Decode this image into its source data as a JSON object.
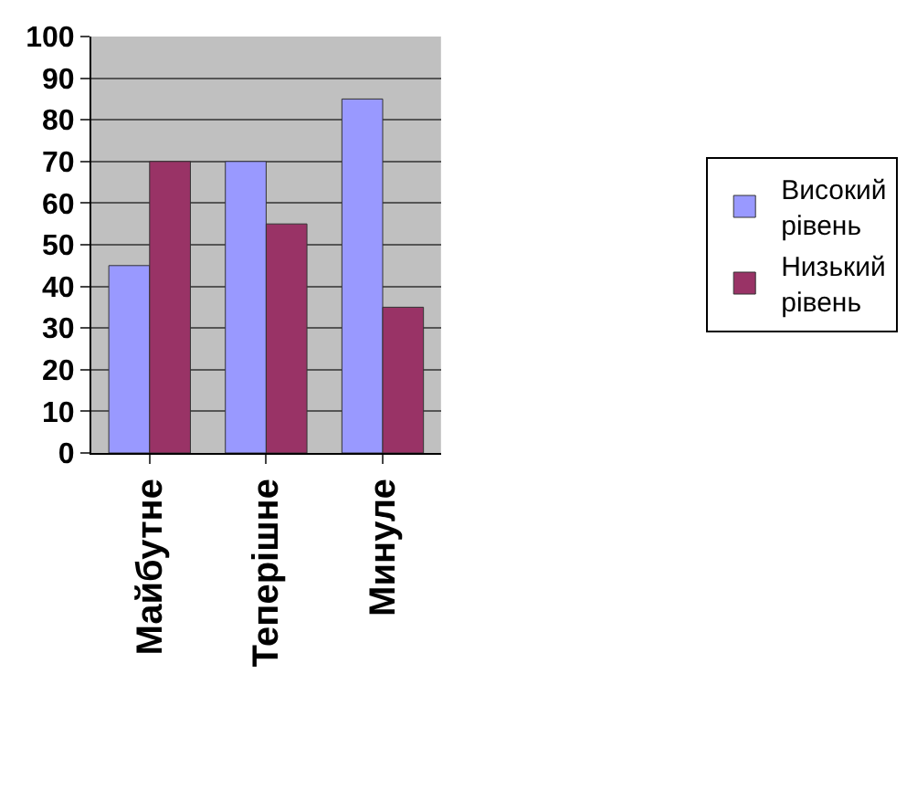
{
  "chart_data": {
    "type": "bar",
    "categories": [
      "Майбутне",
      "Теперішне",
      "Минуле"
    ],
    "series": [
      {
        "name": "Високий рівень",
        "color": "#9999ff",
        "values": [
          45,
          70,
          85
        ]
      },
      {
        "name": "Низький рівень",
        "color": "#993366",
        "values": [
          70,
          55,
          35
        ]
      }
    ],
    "ylim": [
      0,
      100
    ],
    "yticks": [
      0,
      10,
      20,
      30,
      40,
      50,
      60,
      70,
      80,
      90,
      100
    ],
    "grid": "y",
    "legend": "right"
  }
}
